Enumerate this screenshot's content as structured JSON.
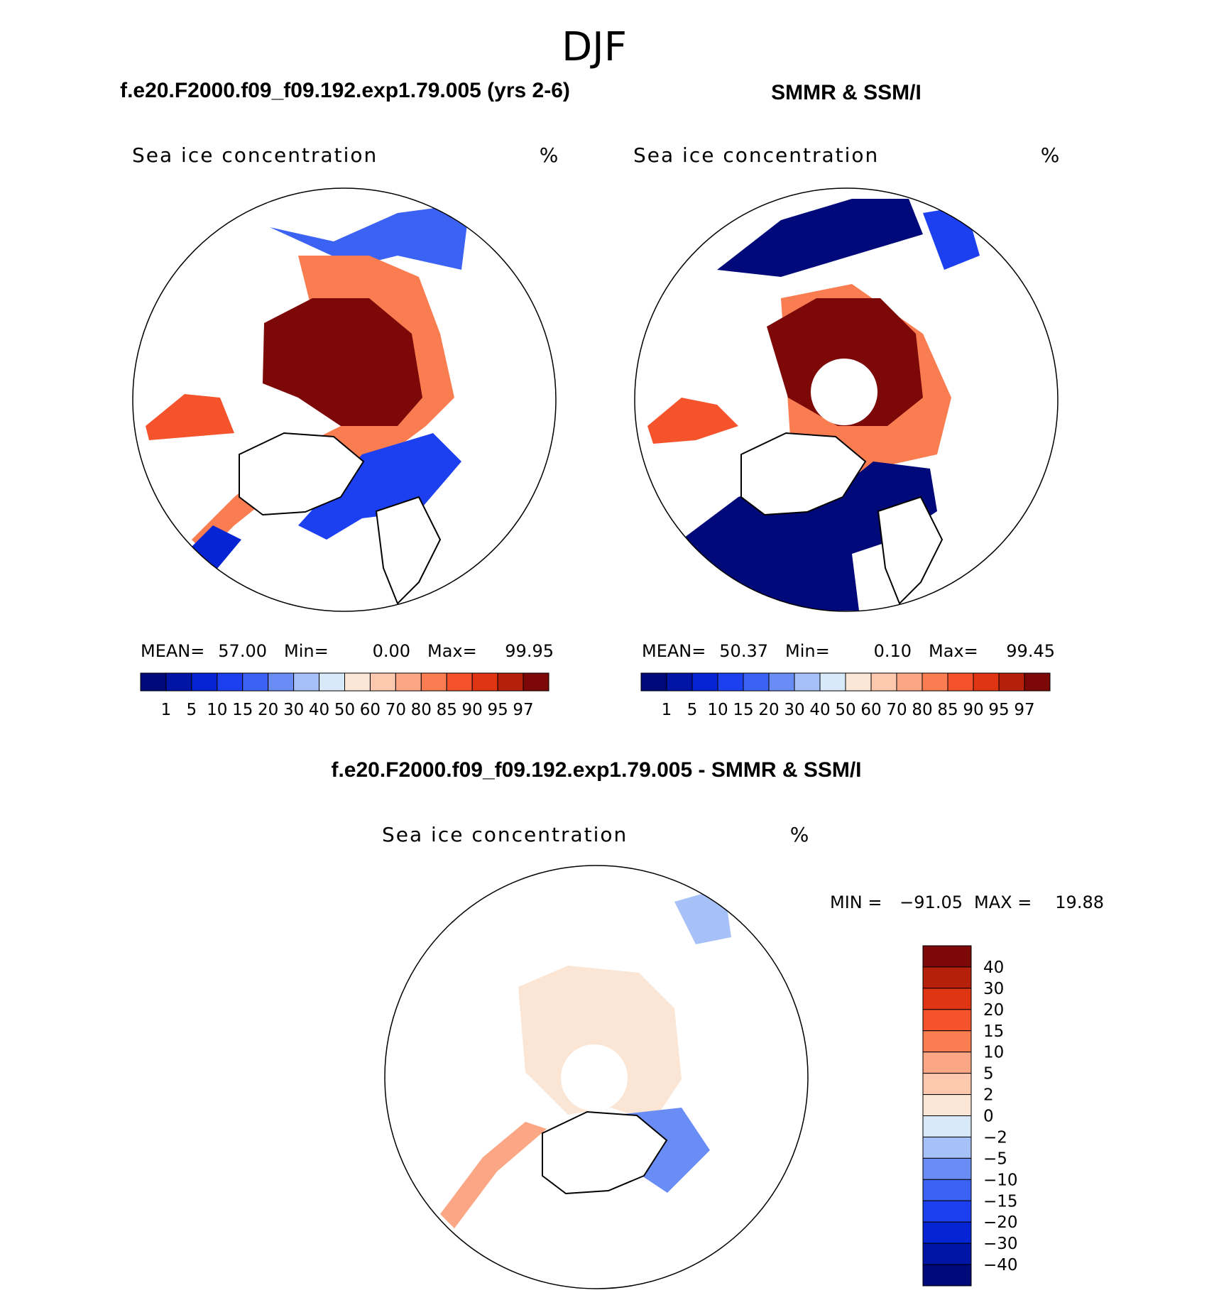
{
  "title": "DJF",
  "panels": [
    {
      "heading": "f.e20.F2000.f09_f09.192.exp1.79.005 (yrs 2-6)",
      "subtitle": "Sea ice concentration",
      "units": "%",
      "stats": [
        {
          "label": "MEAN=",
          "value": "57.00"
        },
        {
          "label": "Min=",
          "value": "0.00"
        },
        {
          "label": "Max=",
          "value": "99.95"
        }
      ]
    },
    {
      "heading": "SMMR & SSM/I",
      "subtitle": "Sea ice concentration",
      "units": "%",
      "stats": [
        {
          "label": "MEAN=",
          "value": "50.37"
        },
        {
          "label": "Min=",
          "value": "0.10"
        },
        {
          "label": "Max=",
          "value": "99.45"
        }
      ]
    }
  ],
  "colorbar": {
    "colors": [
      "#00097a",
      "#0014a6",
      "#0524d4",
      "#1c40f0",
      "#3b62f2",
      "#6a8cf5",
      "#a6c0f8",
      "#d8e9f9",
      "#fbe6d6",
      "#fcc8ae",
      "#fba684",
      "#fa7d52",
      "#f5532c",
      "#df3512",
      "#b5200b",
      "#7c0808"
    ],
    "labels": [
      "1",
      "5",
      "10",
      "15",
      "20",
      "30",
      "40",
      "50",
      "60",
      "70",
      "80",
      "85",
      "90",
      "95",
      "97"
    ]
  },
  "difference": {
    "heading": "f.e20.F2000.f09_f09.192.exp1.79.005 - SMMR & SSM/I",
    "subtitle": "Sea ice concentration",
    "units": "%",
    "stats": [
      {
        "label": "MIN =",
        "value": "−91.05"
      },
      {
        "label": "MAX =",
        "value": "19.88"
      }
    ],
    "colorbar": {
      "colors": [
        "#7c0808",
        "#b5200b",
        "#df3512",
        "#f5532c",
        "#fa7d52",
        "#fba684",
        "#fcc8ae",
        "#fbe6d6",
        "#d8e9f9",
        "#a6c0f8",
        "#6a8cf5",
        "#3b62f2",
        "#1c40f0",
        "#0524d4",
        "#0014a6",
        "#00097a"
      ],
      "labels": [
        "40",
        "30",
        "20",
        "15",
        "10",
        "5",
        "2",
        "0",
        "−2",
        "−5",
        "−10",
        "−15",
        "−20",
        "−30",
        "−40"
      ]
    }
  }
}
